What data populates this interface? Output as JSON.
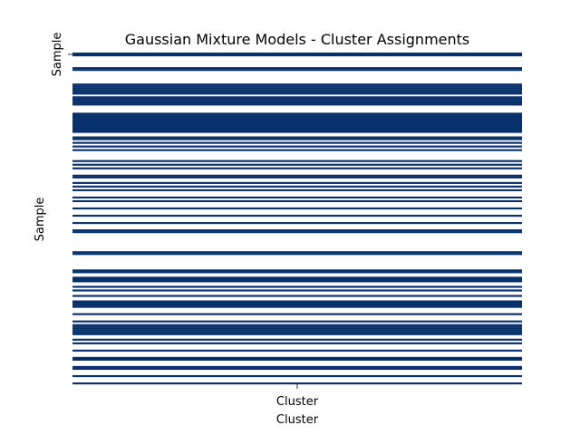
{
  "colors": {
    "assigned": "#08306b",
    "background": "#ffffff"
  },
  "chart_data": {
    "type": "heatmap",
    "title": "Gaussian Mixture Models - Cluster Assignments",
    "xlabel": "Cluster",
    "ylabel": "Sample",
    "x_tick_labels": [
      "Cluster"
    ],
    "y_tick_labels": [
      "Sample"
    ],
    "colorbar": false,
    "rows": 182,
    "assigned_rows": [
      0,
      1,
      8,
      9,
      17,
      18,
      19,
      20,
      21,
      22,
      24,
      25,
      26,
      27,
      28,
      33,
      34,
      35,
      36,
      37,
      38,
      39,
      40,
      41,
      42,
      43,
      46,
      47,
      49,
      51,
      53,
      59,
      61,
      63,
      67,
      68,
      71,
      73,
      75,
      79,
      81,
      85,
      89,
      93,
      97,
      98,
      109,
      110,
      119,
      120,
      123,
      124,
      125,
      128,
      130,
      133,
      136,
      137,
      138,
      139,
      143,
      147,
      149,
      150,
      151,
      152,
      153,
      154,
      157,
      159,
      163,
      167,
      168,
      172,
      173,
      177,
      181
    ]
  }
}
